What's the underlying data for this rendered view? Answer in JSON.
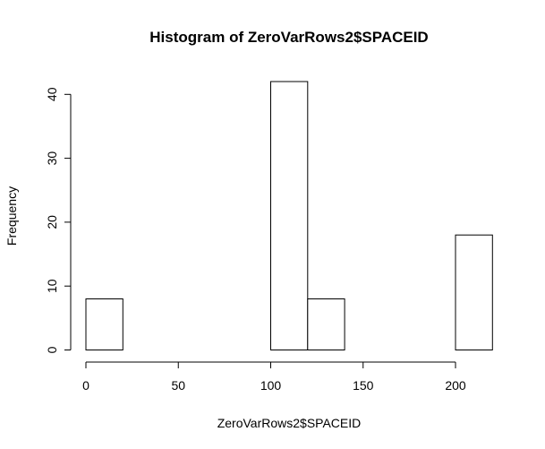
{
  "chart_data": {
    "type": "bar",
    "subtype": "histogram",
    "title": "Histogram of ZeroVarRows2$SPACEID",
    "xlabel": "ZeroVarRows2$SPACEID",
    "ylabel": "Frequency",
    "bins": [
      {
        "start": 0,
        "end": 20,
        "count": 8
      },
      {
        "start": 20,
        "end": 40,
        "count": 0
      },
      {
        "start": 40,
        "end": 60,
        "count": 0
      },
      {
        "start": 60,
        "end": 80,
        "count": 0
      },
      {
        "start": 80,
        "end": 100,
        "count": 0
      },
      {
        "start": 100,
        "end": 120,
        "count": 42
      },
      {
        "start": 120,
        "end": 140,
        "count": 8
      },
      {
        "start": 140,
        "end": 160,
        "count": 0
      },
      {
        "start": 160,
        "end": 180,
        "count": 0
      },
      {
        "start": 180,
        "end": 200,
        "count": 0
      },
      {
        "start": 200,
        "end": 220,
        "count": 18
      }
    ],
    "xlim": [
      0,
      220
    ],
    "ylim": [
      0,
      42
    ],
    "x_ticks": [
      0,
      50,
      100,
      150,
      200
    ],
    "y_ticks": [
      0,
      10,
      20,
      30,
      40
    ],
    "grid": false,
    "bar_fill": "#ffffff",
    "bar_stroke": "#000000"
  }
}
